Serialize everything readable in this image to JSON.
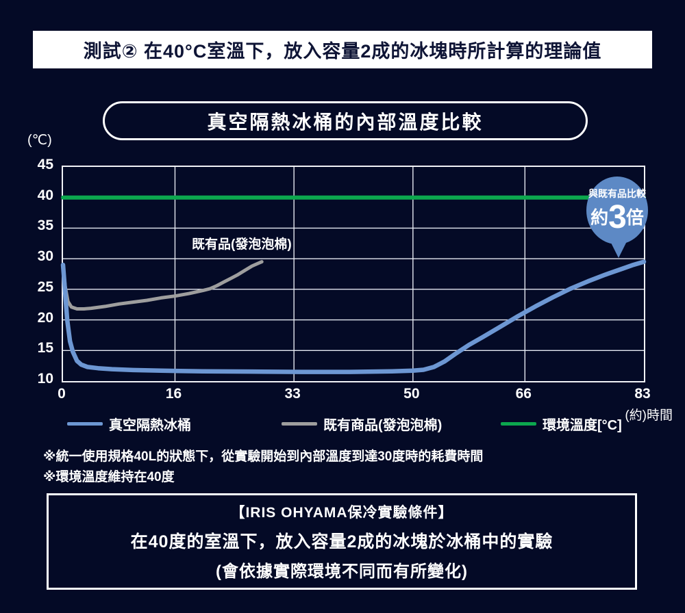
{
  "banner": {
    "title": "測試② 在40°C室溫下，放入容量2成的冰塊時所計算的理論值"
  },
  "chart_title": "真空隔熱冰桶的內部溫度比較",
  "axis": {
    "unit_label": "(℃)",
    "x_axis_label": "(約)時間"
  },
  "series_annotation": "既有品(發泡泡棉)",
  "badge": {
    "line1": "與既有品比較",
    "prefix": "約",
    "number": "3",
    "suffix": "倍",
    "color": "#5d89c5"
  },
  "legend": [
    {
      "label": "真空隔熱冰桶",
      "color": "#6d97d3"
    },
    {
      "label": "既有商品(發泡泡棉)",
      "color": "#9e9e9e"
    },
    {
      "label": "環境溫度[°C]",
      "color": "#0ca74e"
    }
  ],
  "notes": [
    "※統一使用規格40L的狀態下，從實驗開始到內部溫度到達30度時的耗費時間",
    "※環境溫度維持在40度"
  ],
  "footer_box": {
    "line1": "【IRIS OHYAMA保冷實驗條件】",
    "line2": "在40度的室溫下，放入容量2成的冰塊於冰桶中的實驗",
    "line3": "(會依據實際環境不同而有所變化)"
  },
  "chart_data": {
    "type": "line",
    "title": "真空隔熱冰桶的內部溫度比較",
    "xlabel": "(約)時間",
    "ylabel": "(℃)",
    "xlim": [
      0,
      83
    ],
    "ylim": [
      10,
      45
    ],
    "x_ticks": [
      0,
      16,
      33,
      50,
      66,
      83
    ],
    "y_ticks": [
      45,
      40,
      35,
      30,
      25,
      20,
      15,
      10
    ],
    "grid": {
      "v": [
        16,
        33,
        50,
        66
      ],
      "h": [
        40,
        35,
        30,
        25,
        20,
        15
      ]
    },
    "series": [
      {
        "name": "真空隔熱冰桶",
        "color": "#6d97d3",
        "width": 6.5,
        "points": [
          [
            0,
            29
          ],
          [
            0.3,
            24.5
          ],
          [
            0.6,
            20
          ],
          [
            1,
            16.5
          ],
          [
            1.4,
            14.8
          ],
          [
            2,
            13.3
          ],
          [
            2.6,
            12.7
          ],
          [
            3.5,
            12.3
          ],
          [
            5,
            12.1
          ],
          [
            7,
            11.95
          ],
          [
            10,
            11.8
          ],
          [
            14,
            11.7
          ],
          [
            20,
            11.6
          ],
          [
            27,
            11.55
          ],
          [
            34,
            11.5
          ],
          [
            41,
            11.5
          ],
          [
            47,
            11.6
          ],
          [
            50,
            11.7
          ],
          [
            51.5,
            11.85
          ],
          [
            53,
            12.3
          ],
          [
            54.5,
            13.2
          ],
          [
            56,
            14.4
          ],
          [
            58,
            15.9
          ],
          [
            60,
            17.2
          ],
          [
            62.5,
            18.9
          ],
          [
            65,
            20.6
          ],
          [
            67.5,
            22.2
          ],
          [
            70,
            23.7
          ],
          [
            72.5,
            25.1
          ],
          [
            75,
            26.3
          ],
          [
            77.5,
            27.4
          ],
          [
            80,
            28.4
          ],
          [
            81.5,
            29
          ],
          [
            83,
            29.5
          ]
        ]
      },
      {
        "name": "既有商品(發泡泡棉)",
        "color": "#9e9e9e",
        "width": 5,
        "points": [
          [
            0,
            29
          ],
          [
            0.3,
            25.5
          ],
          [
            0.7,
            23
          ],
          [
            1.2,
            22.1
          ],
          [
            2,
            21.8
          ],
          [
            3,
            21.8
          ],
          [
            4,
            21.9
          ],
          [
            6,
            22.2
          ],
          [
            8,
            22.6
          ],
          [
            10,
            22.9
          ],
          [
            12,
            23.2
          ],
          [
            14,
            23.6
          ],
          [
            16,
            23.9
          ],
          [
            18,
            24.3
          ],
          [
            20,
            24.8
          ],
          [
            21,
            25.1
          ],
          [
            22,
            25.6
          ],
          [
            23,
            26.2
          ],
          [
            24,
            26.8
          ],
          [
            25,
            27.4
          ],
          [
            26,
            28.1
          ],
          [
            27,
            28.8
          ],
          [
            28,
            29.3
          ],
          [
            28.4,
            29.5
          ]
        ]
      },
      {
        "name": "環境溫度[°C]",
        "color": "#0ca74e",
        "width": 6,
        "points": [
          [
            0,
            40
          ],
          [
            83,
            40
          ]
        ]
      }
    ],
    "annotations": [
      {
        "text": "既有品(發泡泡棉)",
        "near": [
          24,
          32
        ]
      },
      {
        "text": "與既有品比較 約3倍",
        "near": [
          80,
          38
        ]
      }
    ],
    "legend_position": "bottom"
  }
}
